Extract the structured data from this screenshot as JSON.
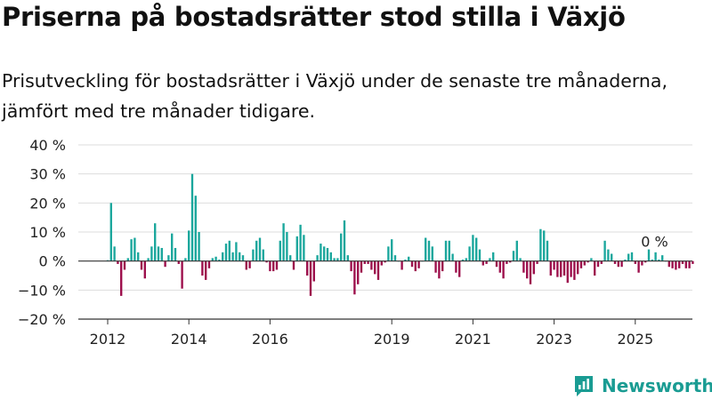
{
  "title": "Priserna på bostadsrätter stod stilla i Växjö",
  "subtitle": "Prisutveckling för bostadsrätter i Växjö under de senaste tre månaderna, jämfört med tre månader tidigare.",
  "brand": "Newsworthy",
  "colors": {
    "positive": "#1aa69c",
    "negative": "#9c0e4b",
    "grid": "#dddddd",
    "axis": "#333333",
    "brand": "#1a9c93"
  },
  "chart_data": {
    "type": "bar",
    "y_unit": "%",
    "ylim": [
      -20,
      40
    ],
    "y_ticks": [
      "40 %",
      "30 %",
      "20 %",
      "10 %",
      "0 %",
      "−10 %",
      "−20 %"
    ],
    "y_tick_values": [
      40,
      30,
      20,
      10,
      0,
      -10,
      -20
    ],
    "x_ticks": [
      {
        "label": "2012",
        "value": 2012.0
      },
      {
        "label": "2014",
        "value": 2014.0
      },
      {
        "label": "2016",
        "value": 2016.0
      },
      {
        "label": "2019",
        "value": 2019.0
      },
      {
        "label": "2021",
        "value": 2021.0
      },
      {
        "label": "2023",
        "value": 2023.0
      },
      {
        "label": "2025",
        "value": 2025.0
      }
    ],
    "start": "2012-01",
    "values": [
      0.3,
      20,
      5,
      -1,
      -12,
      -3,
      1,
      7.5,
      8,
      3,
      -3,
      -6,
      1,
      5,
      13,
      5,
      4.5,
      -2,
      2,
      9.5,
      4.5,
      -1,
      -9.5,
      1,
      10.5,
      30,
      22.5,
      10,
      -5,
      -6.5,
      -2.5,
      1,
      1.5,
      0.5,
      3,
      6,
      7,
      3,
      6.5,
      3,
      2,
      -3,
      -2.5,
      4,
      7,
      8,
      4,
      -0.5,
      -3.5,
      -3.5,
      -3,
      7,
      13,
      10,
      2,
      -3,
      8.5,
      12.5,
      9,
      -5,
      -12,
      -7,
      2,
      6,
      5,
      4.5,
      3,
      1,
      1,
      9.5,
      14,
      2,
      -3.5,
      -11.5,
      -8,
      -4,
      -1,
      -1,
      -3,
      -4.5,
      -6.5,
      -1.5,
      -0.5,
      5,
      7.5,
      2,
      0,
      -3,
      0.5,
      1.5,
      -2,
      -3.5,
      -2.5,
      0,
      8,
      7,
      5,
      -4,
      -6,
      -3.5,
      7,
      7,
      2.5,
      -4,
      -5.5,
      0.5,
      1,
      5,
      9,
      8,
      4,
      -1.5,
      -1,
      1,
      3,
      -2,
      -4,
      -6,
      -1,
      -0.5,
      3.5,
      7,
      1,
      -4,
      -6,
      -8,
      -4.5,
      -1,
      11,
      10.5,
      7,
      -5,
      -3,
      -5.5,
      -5.5,
      -5,
      -7.5,
      -5.5,
      -6.5,
      -4.5,
      -2.5,
      -1.5,
      -0.5,
      1,
      -5,
      -2,
      -1,
      7,
      4,
      2.5,
      -1,
      -2,
      -2,
      0.5,
      2.5,
      3,
      -1,
      -4,
      -1.5,
      -0.5,
      4,
      0.5,
      3,
      0.5,
      2,
      0,
      -2,
      -2.5,
      -3,
      -2.5,
      -1,
      -2.5,
      -2.5,
      -1
    ],
    "annotations": [
      {
        "text": "0 %",
        "x": "2025-09",
        "y": 0
      }
    ]
  }
}
